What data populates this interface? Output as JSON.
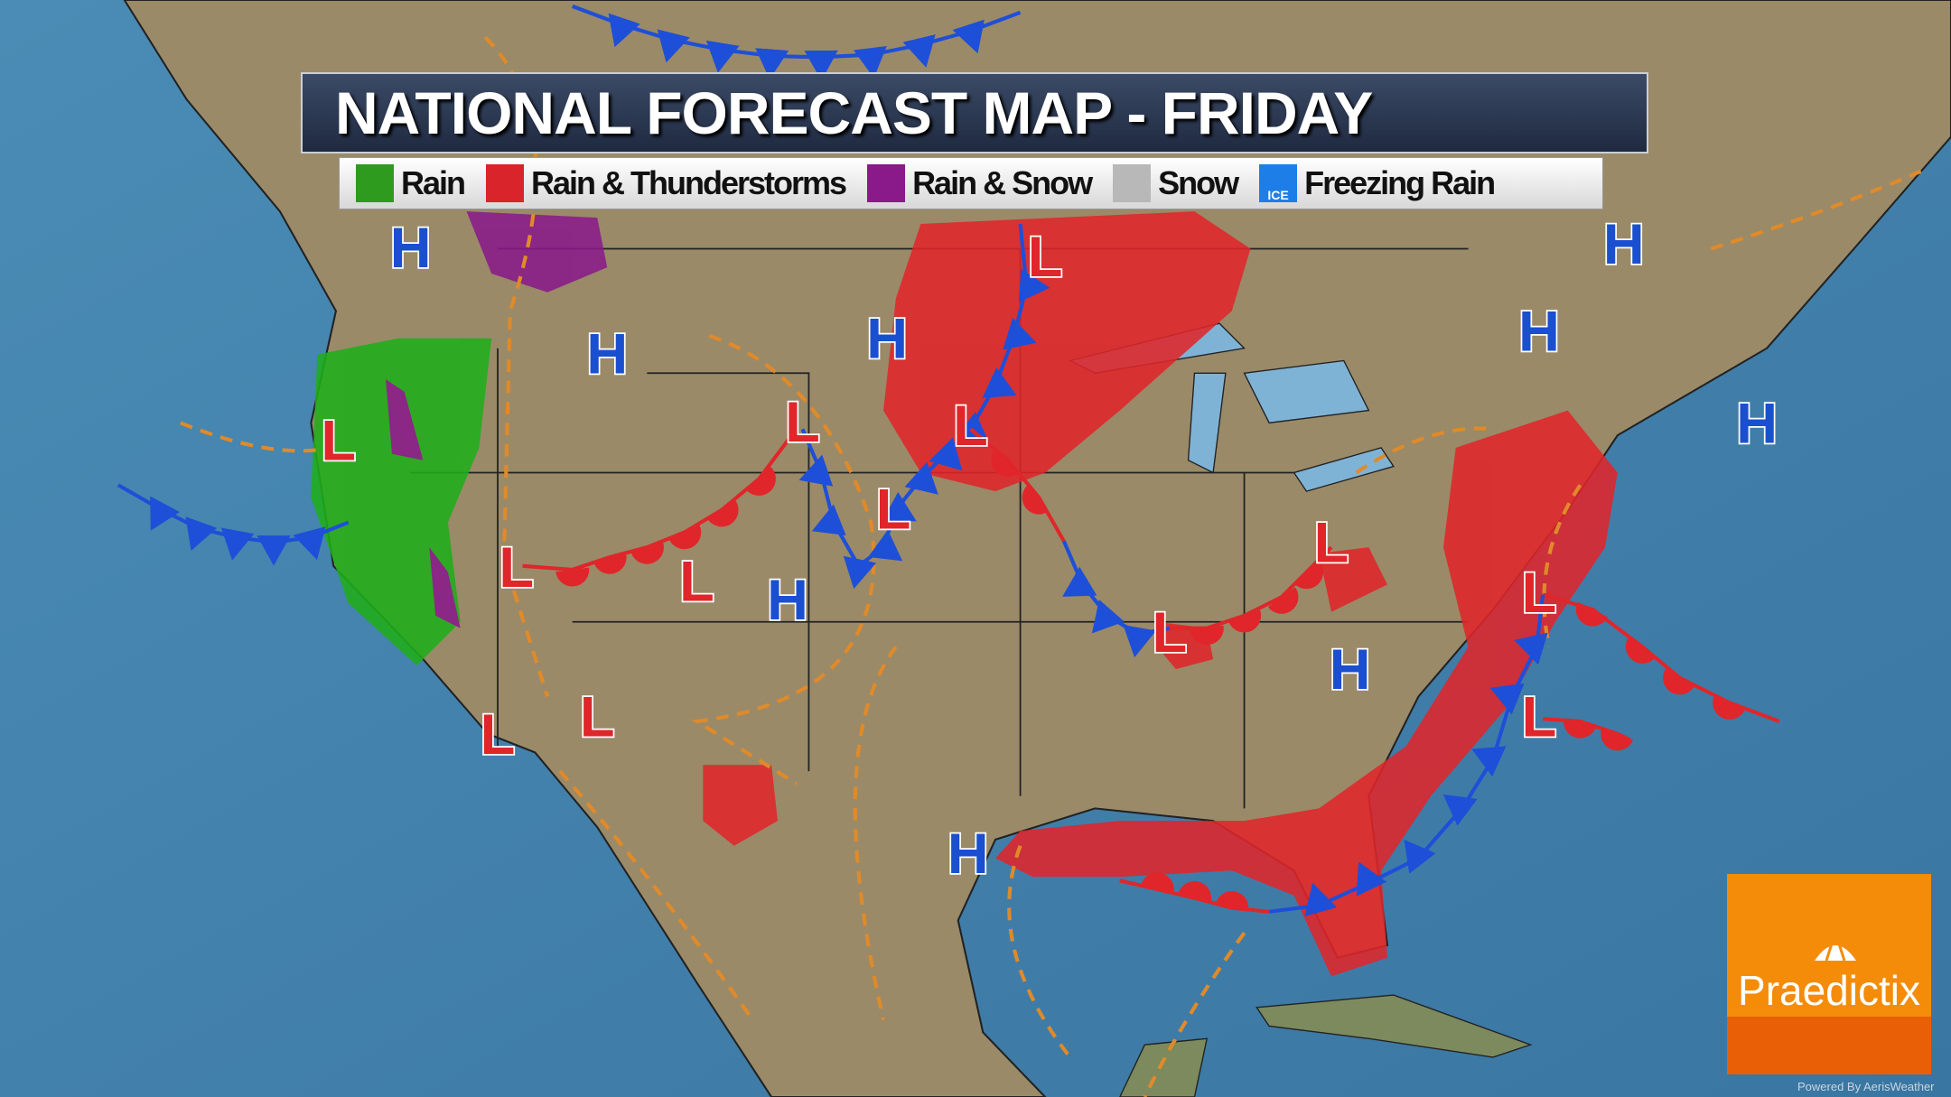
{
  "title": "NATIONAL FORECAST MAP - FRIDAY",
  "legend": [
    {
      "label": "Rain",
      "color": "#2e9a1e",
      "icon": "raindrop-icon"
    },
    {
      "label": "Rain & Thunderstorms",
      "color": "#d8242a",
      "icon": "lightning-icon"
    },
    {
      "label": "Rain & Snow",
      "color": "#8a1a8a",
      "icon": "snowflake-icon"
    },
    {
      "label": "Snow",
      "color": "#b8b8b8",
      "icon": "snowflake-icon"
    },
    {
      "label": "Freezing Rain",
      "color": "#1e7ee8",
      "icon": "ice-icon",
      "badge": "ICE"
    }
  ],
  "pressure_centers": {
    "high": {
      "symbol": "H",
      "color": "#1a4fd0",
      "count": 9
    },
    "low": {
      "symbol": "L",
      "color": "#e0262a",
      "count": 13
    }
  },
  "fronts": {
    "cold_color": "#1e4fd8",
    "warm_color": "#e0262a",
    "trough_color": "#e08a2a"
  },
  "logo": {
    "name": "Praedictix",
    "powered_by": "Powered By AerisWeather"
  }
}
